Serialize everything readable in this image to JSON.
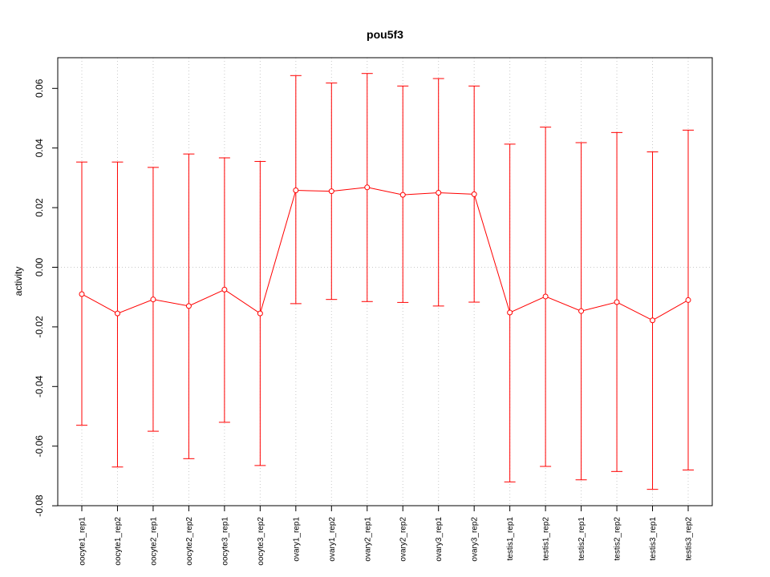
{
  "chart_data": {
    "type": "line",
    "title": "pou5f3",
    "xlabel": "",
    "ylabel": "activity",
    "categories": [
      "oocyte1_rep1",
      "oocyte1_rep2",
      "oocyte2_rep1",
      "oocyte2_rep2",
      "oocyte3_rep1",
      "oocyte3_rep2",
      "ovary1_rep1",
      "ovary1_rep2",
      "ovary2_rep1",
      "ovary2_rep2",
      "ovary3_rep1",
      "ovary3_rep2",
      "testis1_rep1",
      "testis1_rep2",
      "testis2_rep1",
      "testis2_rep2",
      "testis3_rep1",
      "testis3_rep2"
    ],
    "series": [
      {
        "values": [
          -0.009,
          -0.0155,
          -0.0108,
          -0.013,
          -0.0075,
          -0.0155,
          0.0258,
          0.0255,
          0.0268,
          0.0243,
          0.025,
          0.0245,
          -0.0152,
          -0.0098,
          -0.0147,
          -0.0117,
          -0.0178,
          -0.011
        ],
        "upper": [
          0.0353,
          0.0353,
          0.0335,
          0.038,
          0.0367,
          0.0355,
          0.0643,
          0.0618,
          0.065,
          0.0608,
          0.0633,
          0.0608,
          0.0413,
          0.047,
          0.0418,
          0.0452,
          0.0387,
          0.046
        ],
        "lower": [
          -0.053,
          -0.067,
          -0.055,
          -0.0642,
          -0.052,
          -0.0665,
          -0.0122,
          -0.0108,
          -0.0115,
          -0.0118,
          -0.013,
          -0.0117,
          -0.072,
          -0.0668,
          -0.0713,
          -0.0685,
          -0.0745,
          -0.068
        ]
      }
    ],
    "yticks": [
      "-0.08",
      "-0.06",
      "-0.04",
      "-0.02",
      "0.00",
      "0.02",
      "0.04",
      "0.06"
    ],
    "ylim": [
      -0.08,
      0.07
    ],
    "grid": true,
    "color": "#ff0000"
  }
}
